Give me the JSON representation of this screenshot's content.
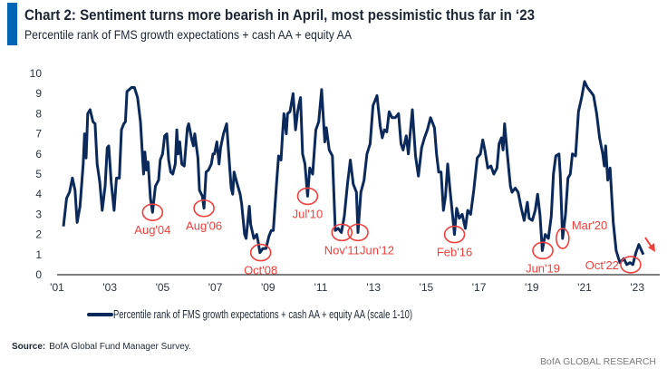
{
  "title": "Chart 2: Sentiment turns more bearish in April, most pessimistic thus far in ‘23",
  "subtitle": "Percentile rank of FMS growth expectations + cash AA + equity AA",
  "source_label": "Source:",
  "source_text": "BofA Global Fund Manager Survey.",
  "footer": "BofA GLOBAL RESEARCH",
  "colors": {
    "accent_bar": "#0064b4",
    "line": "#0b2a5b",
    "annotation": "#f0403c"
  },
  "chart_data": {
    "type": "line",
    "title": "Chart 2: Sentiment turns more bearish in April, most pessimistic thus far in ‘23",
    "xlabel": "",
    "ylabel": "",
    "xlim": [
      2001,
      2024
    ],
    "ylim": [
      0,
      10
    ],
    "grid": false,
    "legend_position": "bottom",
    "x_ticks": [
      2001,
      2003,
      2005,
      2007,
      2009,
      2011,
      2013,
      2015,
      2017,
      2019,
      2021,
      2023
    ],
    "x_tick_labels": [
      "'01",
      "'03",
      "'05",
      "'07",
      "'09",
      "'11",
      "'13",
      "'15",
      "'17",
      "'19",
      "'21",
      "'23"
    ],
    "y_ticks": [
      0,
      1,
      2,
      3,
      4,
      5,
      6,
      7,
      8,
      9,
      10
    ],
    "y_tick_labels": [
      "0",
      "1",
      "2",
      "3",
      "4",
      "5",
      "6",
      "7",
      "8",
      "9",
      "10"
    ],
    "series": [
      {
        "name": "Percentile rank of FMS growth expectations + cash AA + equity AA (scale 1-10)",
        "x": [
          2001.24,
          2001.36,
          2001.47,
          2001.58,
          2001.68,
          2001.76,
          2001.87,
          2001.99,
          2002.04,
          2002.1,
          2002.16,
          2002.25,
          2002.36,
          2002.44,
          2002.52,
          2002.62,
          2002.71,
          2002.82,
          2002.9,
          2002.96,
          2003.05,
          2003.16,
          2003.25,
          2003.36,
          2003.44,
          2003.53,
          2003.59,
          2003.65,
          2003.82,
          2003.93,
          2004.05,
          2004.16,
          2004.28,
          2004.33,
          2004.39,
          2004.45,
          2004.54,
          2004.62,
          2004.73,
          2004.85,
          2004.91,
          2005.0,
          2005.08,
          2005.16,
          2005.23,
          2005.31,
          2005.39,
          2005.48,
          2005.54,
          2005.59,
          2005.65,
          2005.73,
          2005.82,
          2005.94,
          2005.99,
          2006.11,
          2006.17,
          2006.22,
          2006.34,
          2006.4,
          2006.51,
          2006.57,
          2006.65,
          2006.74,
          2006.85,
          2006.91,
          2006.97,
          2007.06,
          2007.14,
          2007.2,
          2007.31,
          2007.43,
          2007.48,
          2007.6,
          2007.66,
          2007.71,
          2007.83,
          2007.94,
          2008.0,
          2008.11,
          2008.17,
          2008.29,
          2008.34,
          2008.46,
          2008.57,
          2008.63,
          2008.69,
          2008.8,
          2008.92,
          2009.03,
          2009.12,
          2009.2,
          2009.32,
          2009.4,
          2009.49,
          2009.55,
          2009.6,
          2009.69,
          2009.74,
          2009.83,
          2009.95,
          2010.04,
          2010.12,
          2010.18,
          2010.23,
          2010.31,
          2010.4,
          2010.5,
          2010.58,
          2010.69,
          2010.81,
          2010.92,
          2011.03,
          2011.15,
          2011.21,
          2011.32,
          2011.44,
          2011.55,
          2011.66,
          2011.78,
          2011.89,
          2012.01,
          2012.12,
          2012.23,
          2012.35,
          2012.41,
          2012.52,
          2012.64,
          2012.75,
          2012.87,
          2012.98,
          2013.13,
          2013.25,
          2013.33,
          2013.41,
          2013.5,
          2013.59,
          2013.7,
          2013.82,
          2013.95,
          2014.04,
          2014.12,
          2014.24,
          2014.32,
          2014.47,
          2014.59,
          2014.7,
          2014.82,
          2014.93,
          2015.04,
          2015.16,
          2015.31,
          2015.39,
          2015.47,
          2015.56,
          2015.65,
          2015.73,
          2015.81,
          2015.9,
          2016.0,
          2016.07,
          2016.15,
          2016.25,
          2016.36,
          2016.48,
          2016.57,
          2016.68,
          2016.8,
          2016.93,
          2017.05,
          2017.14,
          2017.22,
          2017.33,
          2017.45,
          2017.56,
          2017.68,
          2017.76,
          2017.85,
          2017.91,
          2017.97,
          2018.08,
          2018.19,
          2018.25,
          2018.37,
          2018.48,
          2018.6,
          2018.71,
          2018.83,
          2018.9,
          2019.02,
          2019.13,
          2019.22,
          2019.31,
          2019.4,
          2019.51,
          2019.63,
          2019.74,
          2019.82,
          2019.91,
          2020.03,
          2020.08,
          2020.17,
          2020.28,
          2020.37,
          2020.46,
          2020.54,
          2020.66,
          2020.77,
          2020.89,
          2021.0,
          2021.11,
          2021.23,
          2021.34,
          2021.46,
          2021.57,
          2021.69,
          2021.75,
          2021.8,
          2021.88,
          2021.97,
          2022.09,
          2022.2,
          2022.34,
          2022.49,
          2022.6,
          2022.72,
          2022.83,
          2022.95,
          2023.06,
          2023.23
        ],
        "y": [
          2.4,
          3.8,
          4.1,
          4.8,
          4.2,
          2.6,
          3.4,
          5.5,
          7.0,
          5.8,
          8.0,
          8.2,
          7.6,
          7.5,
          5.5,
          4.6,
          3.2,
          4.4,
          6.3,
          6.4,
          4.6,
          3.2,
          4.8,
          4.8,
          7.2,
          7.5,
          7.6,
          9.1,
          9.3,
          9.3,
          8.8,
          7.6,
          5.0,
          6.1,
          5.2,
          5.6,
          3.8,
          3.1,
          4.4,
          4.7,
          5.7,
          6.0,
          6.9,
          7.0,
          5.7,
          5.1,
          5.0,
          5.5,
          7.2,
          6.0,
          6.6,
          5.5,
          5.4,
          7.3,
          7.5,
          6.7,
          6.4,
          7.0,
          5.8,
          4.2,
          3.9,
          3.3,
          5.1,
          5.2,
          5.5,
          6.0,
          6.0,
          6.6,
          5.5,
          6.3,
          7.0,
          7.5,
          6.5,
          4.3,
          4.0,
          5.1,
          4.5,
          4.0,
          3.5,
          2.0,
          1.8,
          3.4,
          2.5,
          1.8,
          2.0,
          1.6,
          1.1,
          1.3,
          1.3,
          1.9,
          2.2,
          2.2,
          4.5,
          5.9,
          5.7,
          7.0,
          8.0,
          7.0,
          8.0,
          8.1,
          9.0,
          7.2,
          8.1,
          8.5,
          8.8,
          6.0,
          5.5,
          3.9,
          5.3,
          5.0,
          7.2,
          7.6,
          9.2,
          6.6,
          7.3,
          6.2,
          5.9,
          2.2,
          2.3,
          2.1,
          2.9,
          4.5,
          5.7,
          4.5,
          4.1,
          2.1,
          4.1,
          4.7,
          6.0,
          6.5,
          8.4,
          8.9,
          7.4,
          6.8,
          7.2,
          7.1,
          8.1,
          7.8,
          7.8,
          8.0,
          6.5,
          6.2,
          6.9,
          6.0,
          8.2,
          5.9,
          4.9,
          6.3,
          6.8,
          7.2,
          7.8,
          7.3,
          6.0,
          5.1,
          5.1,
          3.2,
          3.9,
          5.5,
          4.2,
          2.9,
          2.0,
          3.3,
          2.8,
          3.0,
          2.3,
          3.2,
          3.0,
          4.2,
          5.8,
          6.0,
          6.7,
          6.2,
          5.3,
          5.4,
          5.0,
          5.3,
          6.5,
          6.8,
          6.2,
          7.5,
          5.9,
          4.4,
          4.1,
          4.3,
          4.1,
          3.3,
          2.7,
          3.6,
          2.8,
          2.7,
          3.2,
          4.0,
          3.0,
          1.2,
          2.0,
          1.8,
          2.9,
          5.0,
          5.9,
          6.0,
          5.0,
          1.8,
          3.0,
          4.8,
          5.0,
          6.0,
          5.9,
          8.1,
          8.8,
          9.6,
          9.3,
          9.1,
          8.9,
          8.0,
          6.8,
          6.0,
          5.4,
          6.4,
          4.7,
          5.3,
          2.6,
          1.2,
          0.6,
          0.8,
          0.5,
          0.6,
          0.5,
          1.1,
          1.5,
          1.0
        ]
      }
    ],
    "annotations": [
      {
        "label": "Aug'04",
        "x": 2004.62,
        "y": 3.1,
        "placement": "below"
      },
      {
        "label": "Aug'06",
        "x": 2006.57,
        "y": 3.3,
        "placement": "below"
      },
      {
        "label": "Oct'08",
        "x": 2008.72,
        "y": 1.1,
        "placement": "below"
      },
      {
        "label": "Jul'10",
        "x": 2010.5,
        "y": 3.9,
        "placement": "below"
      },
      {
        "label": "Nov'11",
        "x": 2011.8,
        "y": 2.1,
        "placement": "below"
      },
      {
        "label": "Jun'12",
        "x": 2012.41,
        "y": 2.1,
        "placement": "below-right"
      },
      {
        "label": "Feb'16",
        "x": 2016.07,
        "y": 2.0,
        "placement": "below"
      },
      {
        "label": "Jun'19",
        "x": 2019.42,
        "y": 1.2,
        "placement": "below"
      },
      {
        "label": "Mar'20",
        "x": 2020.17,
        "y": 1.8,
        "placement": "above-right"
      },
      {
        "label": "Oct'22",
        "x": 2022.75,
        "y": 0.5,
        "placement": "left"
      }
    ],
    "trend_arrow": {
      "direction": "down-right",
      "near_x": 2023.5
    }
  }
}
